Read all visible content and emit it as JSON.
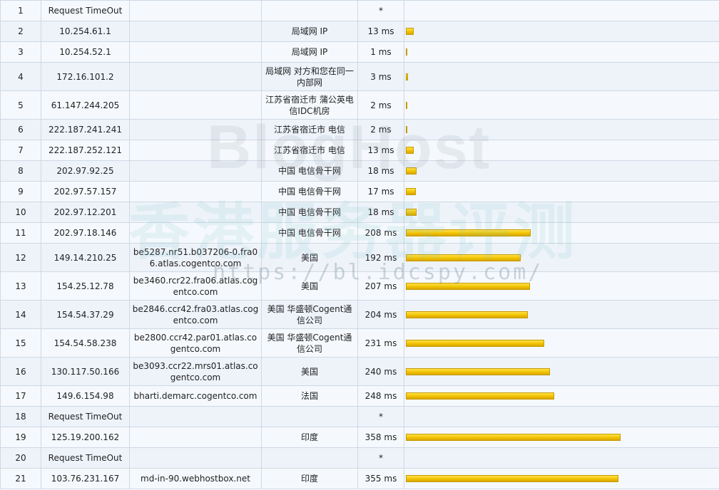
{
  "rows": [
    {
      "hop": "1",
      "ip": "Request TimeOut",
      "host": "",
      "loc": "",
      "time": "*",
      "ms": 0
    },
    {
      "hop": "2",
      "ip": "10.254.61.1",
      "host": "",
      "loc": "局域网 IP",
      "time": "13 ms",
      "ms": 13
    },
    {
      "hop": "3",
      "ip": "10.254.52.1",
      "host": "",
      "loc": "局域网 IP",
      "time": "1 ms",
      "ms": 1
    },
    {
      "hop": "4",
      "ip": "172.16.101.2",
      "host": "",
      "loc": "局域网 对方和您在同一内部网",
      "time": "3 ms",
      "ms": 3
    },
    {
      "hop": "5",
      "ip": "61.147.244.205",
      "host": "",
      "loc": "江苏省宿迁市 蒲公英电信IDC机房",
      "time": "2 ms",
      "ms": 2
    },
    {
      "hop": "6",
      "ip": "222.187.241.241",
      "host": "",
      "loc": "江苏省宿迁市 电信",
      "time": "2 ms",
      "ms": 2
    },
    {
      "hop": "7",
      "ip": "222.187.252.121",
      "host": "",
      "loc": "江苏省宿迁市 电信",
      "time": "13 ms",
      "ms": 13
    },
    {
      "hop": "8",
      "ip": "202.97.92.25",
      "host": "",
      "loc": "中国 电信骨干网",
      "time": "18 ms",
      "ms": 18
    },
    {
      "hop": "9",
      "ip": "202.97.57.157",
      "host": "",
      "loc": "中国 电信骨干网",
      "time": "17 ms",
      "ms": 17
    },
    {
      "hop": "10",
      "ip": "202.97.12.201",
      "host": "",
      "loc": "中国 电信骨干网",
      "time": "18 ms",
      "ms": 18
    },
    {
      "hop": "11",
      "ip": "202.97.18.146",
      "host": "",
      "loc": "中国 电信骨干网",
      "time": "208 ms",
      "ms": 208
    },
    {
      "hop": "12",
      "ip": "149.14.210.25",
      "host": "be5287.nr51.b037206-0.fra06.atlas.cogentco.com",
      "loc": "美国",
      "time": "192 ms",
      "ms": 192
    },
    {
      "hop": "13",
      "ip": "154.25.12.78",
      "host": "be3460.rcr22.fra06.atlas.cogentco.com",
      "loc": "美国",
      "time": "207 ms",
      "ms": 207
    },
    {
      "hop": "14",
      "ip": "154.54.37.29",
      "host": "be2846.ccr42.fra03.atlas.cogentco.com",
      "loc": "美国 华盛顿Cogent通信公司",
      "time": "204 ms",
      "ms": 204
    },
    {
      "hop": "15",
      "ip": "154.54.58.238",
      "host": "be2800.ccr42.par01.atlas.cogentco.com",
      "loc": "美国 华盛顿Cogent通信公司",
      "time": "231 ms",
      "ms": 231
    },
    {
      "hop": "16",
      "ip": "130.117.50.166",
      "host": "be3093.ccr22.mrs01.atlas.cogentco.com",
      "loc": "美国",
      "time": "240 ms",
      "ms": 240
    },
    {
      "hop": "17",
      "ip": "149.6.154.98",
      "host": "bharti.demarc.cogentco.com",
      "loc": "法国",
      "time": "248 ms",
      "ms": 248
    },
    {
      "hop": "18",
      "ip": "Request TimeOut",
      "host": "",
      "loc": "",
      "time": "*",
      "ms": 0
    },
    {
      "hop": "19",
      "ip": "125.19.200.162",
      "host": "",
      "loc": "印度",
      "time": "358 ms",
      "ms": 358
    },
    {
      "hop": "20",
      "ip": "Request TimeOut",
      "host": "",
      "loc": "",
      "time": "*",
      "ms": 0
    },
    {
      "hop": "21",
      "ip": "103.76.231.167",
      "host": "md-in-90.webhostbox.net",
      "loc": "印度",
      "time": "355 ms",
      "ms": 355
    }
  ],
  "watermark": {
    "line1": "BlogHost",
    "line2": "香港服务器评测",
    "line3": "https://bl.idcspy.com/"
  },
  "colors": {
    "bar": "#f2c200",
    "border": "#cfd8e3"
  }
}
